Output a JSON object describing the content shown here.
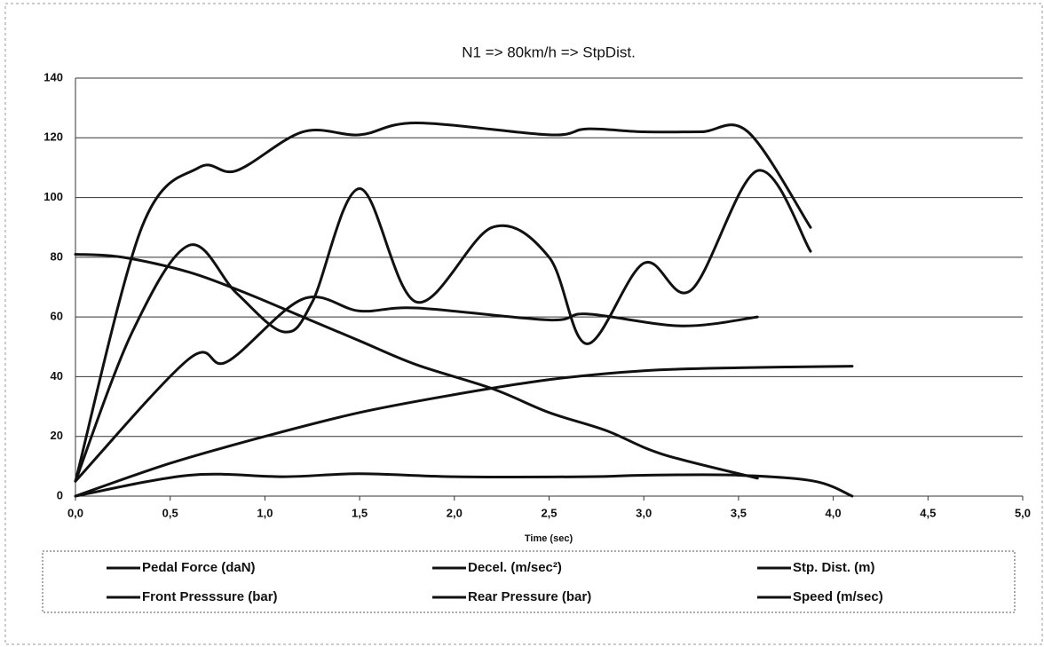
{
  "chart_data": {
    "type": "line",
    "title": "N1 => 80km/h => StpDist.",
    "x_label": "Time (sec)",
    "xlim": [
      0,
      5
    ],
    "xticks": [
      {
        "value": 0,
        "label": "0,0"
      },
      {
        "value": 0.5,
        "label": "0,5"
      },
      {
        "value": 1,
        "label": "1,0"
      },
      {
        "value": 1.5,
        "label": "1,5"
      },
      {
        "value": 2,
        "label": "2,0"
      },
      {
        "value": 2.5,
        "label": "2,5"
      },
      {
        "value": 3,
        "label": "3,0"
      },
      {
        "value": 3.5,
        "label": "3,5"
      },
      {
        "value": 4,
        "label": "4,0"
      },
      {
        "value": 4.5,
        "label": "4,5"
      },
      {
        "value": 5,
        "label": "5,0"
      }
    ],
    "ylim": [
      0,
      140
    ],
    "yticks": [
      0,
      20,
      40,
      60,
      80,
      100,
      120,
      140
    ],
    "grid": true,
    "legend": "bottom",
    "series": [
      {
        "name": "Pedal Force (daN)",
        "color": "#111111",
        "x": [
          0,
          0.3,
          0.6,
          0.85,
          1.1,
          1.25,
          1.5,
          1.8,
          2.2,
          2.5,
          2.7,
          3.0,
          3.25,
          3.6,
          3.88
        ],
        "values": [
          5,
          55,
          84,
          68,
          55,
          65,
          103,
          65,
          90,
          80,
          51,
          78,
          69,
          109,
          82
        ]
      },
      {
        "name": "Decel. (m/sec²)",
        "color": "#111111",
        "x": [
          0,
          0.6,
          1.1,
          1.5,
          2.0,
          2.7,
          3.0,
          3.5,
          3.9,
          4.1
        ],
        "values": [
          0,
          7,
          6.5,
          7.5,
          6.5,
          6.5,
          7,
          7,
          5,
          0
        ]
      },
      {
        "name": "Stp. Dist. (m)",
        "color": "#111111",
        "x": [
          0,
          0.5,
          1.0,
          1.5,
          2.0,
          2.5,
          3.0,
          3.5,
          4.1
        ],
        "values": [
          0,
          11,
          20,
          28,
          34,
          39,
          42,
          43,
          43.5
        ]
      },
      {
        "name": "Front Presssure (bar)",
        "color": "#111111",
        "x": [
          0,
          0.35,
          0.65,
          0.85,
          1.2,
          1.5,
          1.8,
          2.5,
          2.7,
          3.0,
          3.3,
          3.55,
          3.88
        ],
        "values": [
          5,
          90,
          110,
          109,
          122,
          121,
          125,
          121,
          123,
          122,
          122,
          122,
          90
        ]
      },
      {
        "name": "Rear Pressure (bar)",
        "color": "#111111",
        "x": [
          0,
          0.6,
          0.8,
          1.2,
          1.5,
          1.8,
          2.5,
          2.7,
          3.2,
          3.6
        ],
        "values": [
          5,
          46,
          45,
          66,
          62,
          63,
          59,
          61,
          57,
          60
        ]
      },
      {
        "name": "Speed (m/sec)",
        "color": "#111111",
        "x": [
          0,
          0.25,
          0.6,
          0.9,
          1.2,
          1.5,
          1.8,
          2.2,
          2.5,
          2.8,
          3.1,
          3.6
        ],
        "values": [
          81,
          80,
          75,
          68,
          60,
          52,
          44,
          36,
          28,
          22,
          14,
          6
        ]
      }
    ]
  }
}
